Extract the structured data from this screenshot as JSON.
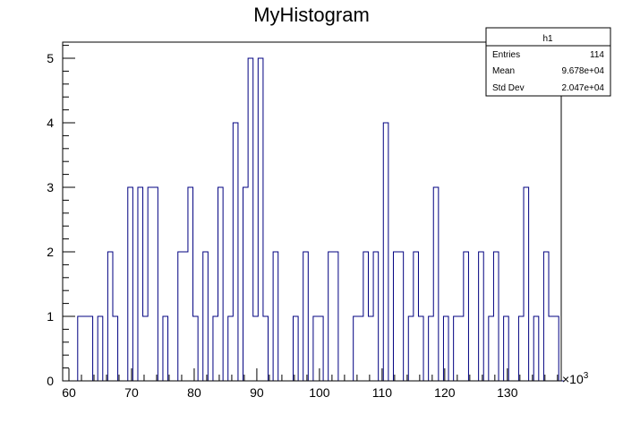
{
  "chart_data": {
    "type": "histogram",
    "title": "MyHistogram",
    "xlabel": "",
    "ylabel": "",
    "x_multiplier": "×10",
    "x_multiplier_exp": "3",
    "xlim": [
      59,
      138.6
    ],
    "ylim": [
      0,
      5.25
    ],
    "bin_width": 0.8,
    "bin_start": 59.0,
    "x_tick_labels": [
      "60",
      "70",
      "80",
      "90",
      "100",
      "110",
      "120",
      "130"
    ],
    "x_ticks": [
      60,
      70,
      80,
      90,
      100,
      110,
      120,
      130
    ],
    "y_tick_labels": [
      "0",
      "1",
      "2",
      "3",
      "4",
      "5"
    ],
    "y_ticks": [
      0,
      1,
      2,
      3,
      4,
      5
    ],
    "counts": [
      0,
      0,
      0,
      1,
      1,
      1,
      0,
      1,
      0,
      2,
      1,
      0,
      0,
      3,
      0,
      3,
      1,
      3,
      3,
      0,
      1,
      0,
      0,
      2,
      2,
      3,
      1,
      0,
      2,
      0,
      1,
      3,
      0,
      1,
      4,
      0,
      3,
      5,
      1,
      5,
      1,
      0,
      2,
      0,
      0,
      0,
      1,
      0,
      2,
      0,
      1,
      1,
      0,
      2,
      2,
      0,
      0,
      0,
      1,
      1,
      2,
      1,
      2,
      0,
      4,
      0,
      2,
      2,
      0,
      1,
      2,
      1,
      0,
      1,
      3,
      0,
      1,
      0,
      1,
      1,
      2,
      0,
      0,
      2,
      0,
      1,
      2,
      0,
      1,
      0,
      0,
      1,
      3,
      0,
      1,
      0,
      2,
      1,
      1,
      0
    ],
    "line_color": "#000080"
  },
  "stats_box": {
    "name": "h1",
    "rows": [
      {
        "label": "Entries",
        "value": "114"
      },
      {
        "label": "Mean",
        "value": "9.678e+04"
      },
      {
        "label": "Std Dev",
        "value": "2.047e+04"
      }
    ]
  }
}
